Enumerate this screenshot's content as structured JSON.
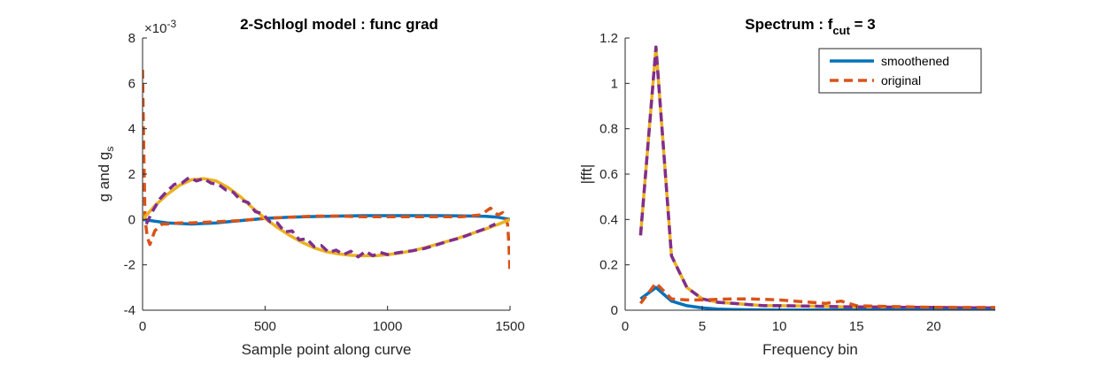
{
  "colors": {
    "smooth": "#0072BD",
    "orig": "#D95319",
    "yellow": "#EDB120",
    "purple": "#7E2F8E",
    "axis": "#262626"
  },
  "chart_data": [
    {
      "type": "line",
      "title": "2-Schlogl model : func grad",
      "xlabel": "Sample point along curve",
      "ylabel": {
        "main": "g and g",
        "sub": "s"
      },
      "y_exponent": {
        "base": "×10",
        "power": "-3"
      },
      "xlim": [
        0,
        1500
      ],
      "ylim": [
        -4,
        8
      ],
      "xticks": [
        0,
        500,
        1000,
        1500
      ],
      "yticks": [
        -4,
        -2,
        0,
        2,
        4,
        6,
        8
      ],
      "series": [
        {
          "style": "smooth-solid",
          "x": [
            0,
            100,
            200,
            300,
            400,
            500,
            600,
            700,
            800,
            900,
            1000,
            1100,
            1200,
            1300,
            1400,
            1450,
            1500
          ],
          "y": [
            0.0,
            -0.15,
            -0.2,
            -0.15,
            -0.05,
            0.05,
            0.1,
            0.13,
            0.15,
            0.17,
            0.17,
            0.17,
            0.17,
            0.16,
            0.14,
            0.1,
            0.0
          ]
        },
        {
          "style": "orig-dashed",
          "x": [
            0,
            5,
            10,
            20,
            30,
            50,
            80,
            100,
            150,
            200,
            300,
            400,
            500,
            600,
            700,
            800,
            900,
            1000,
            1100,
            1200,
            1300,
            1380,
            1420,
            1450,
            1470,
            1490,
            1495,
            1500
          ],
          "y": [
            6.6,
            3.0,
            0.0,
            -0.8,
            -1.1,
            -0.5,
            -0.2,
            -0.2,
            -0.15,
            -0.15,
            -0.1,
            -0.05,
            0.05,
            0.1,
            0.15,
            0.15,
            0.12,
            0.12,
            0.12,
            0.12,
            0.12,
            0.2,
            0.5,
            0.2,
            0.3,
            -0.2,
            -1.0,
            -2.4
          ]
        },
        {
          "style": "yellow-solid",
          "x": [
            0,
            50,
            100,
            150,
            200,
            250,
            300,
            350,
            400,
            450,
            500,
            550,
            600,
            650,
            700,
            750,
            800,
            850,
            900,
            950,
            1000,
            1050,
            1100,
            1150,
            1200,
            1250,
            1300,
            1350,
            1400,
            1450,
            1500
          ],
          "y": [
            0.0,
            0.6,
            1.1,
            1.5,
            1.75,
            1.8,
            1.7,
            1.4,
            1.0,
            0.5,
            0.05,
            -0.35,
            -0.7,
            -1.0,
            -1.25,
            -1.42,
            -1.52,
            -1.58,
            -1.6,
            -1.6,
            -1.55,
            -1.48,
            -1.38,
            -1.25,
            -1.1,
            -0.95,
            -0.78,
            -0.6,
            -0.42,
            -0.22,
            0.0
          ]
        },
        {
          "style": "purple-dashed",
          "x": [
            15,
            40,
            70,
            100,
            130,
            160,
            190,
            220,
            250,
            280,
            310,
            340,
            370,
            400,
            430,
            460,
            490,
            520,
            550,
            580,
            610,
            640,
            670,
            700,
            730,
            760,
            790,
            820,
            850,
            880,
            910,
            940,
            970,
            1000,
            1050,
            1100,
            1150,
            1200,
            1250,
            1300,
            1350,
            1400,
            1440
          ],
          "y": [
            -0.2,
            0.35,
            0.9,
            1.25,
            1.55,
            1.6,
            1.85,
            1.7,
            1.8,
            1.6,
            1.55,
            1.3,
            1.2,
            0.85,
            0.75,
            0.35,
            0.25,
            -0.1,
            -0.15,
            -0.55,
            -0.5,
            -0.9,
            -0.85,
            -1.2,
            -1.15,
            -1.45,
            -1.35,
            -1.55,
            -1.4,
            -1.65,
            -1.4,
            -1.6,
            -1.45,
            -1.55,
            -1.45,
            -1.38,
            -1.28,
            -1.12,
            -0.95,
            -0.8,
            -0.6,
            -0.4,
            -0.2
          ]
        }
      ]
    },
    {
      "type": "line",
      "title": {
        "main": "Spectrum : f",
        "sub": "cut",
        "suffix": " = 3"
      },
      "xlabel": "Frequency bin",
      "ylabel": "|fft|",
      "xlim": [
        0,
        24
      ],
      "ylim": [
        0,
        1.2
      ],
      "xticks": [
        0,
        5,
        10,
        15,
        20
      ],
      "yticks": [
        0,
        0.2,
        0.4,
        0.6,
        0.8,
        1,
        1.2
      ],
      "legend": {
        "placement": "top-right",
        "entries": [
          "smoothened",
          "original"
        ]
      },
      "series": [
        {
          "style": "yellow-solid",
          "x": [
            1,
            2,
            3,
            4,
            5,
            6,
            7,
            8,
            9,
            10,
            12,
            14,
            16,
            18,
            20,
            22,
            24
          ],
          "y": [
            0.33,
            1.16,
            0.24,
            0.1,
            0.05,
            0.035,
            0.03,
            0.025,
            0.02,
            0.02,
            0.018,
            0.015,
            0.014,
            0.013,
            0.012,
            0.011,
            0.01
          ]
        },
        {
          "style": "purple-dashed",
          "x": [
            1,
            2,
            3,
            4,
            5,
            6,
            7,
            8,
            9,
            10,
            12,
            14,
            16,
            18,
            20,
            22,
            24
          ],
          "y": [
            0.33,
            1.16,
            0.24,
            0.1,
            0.05,
            0.035,
            0.03,
            0.025,
            0.02,
            0.02,
            0.018,
            0.015,
            0.014,
            0.013,
            0.012,
            0.011,
            0.01
          ]
        },
        {
          "name": "smoothened",
          "style": "smooth-solid",
          "x": [
            1,
            2,
            3,
            4,
            5,
            6,
            7,
            8,
            10,
            12,
            14,
            16,
            18,
            20,
            22,
            24
          ],
          "y": [
            0.05,
            0.1,
            0.04,
            0.02,
            0.01,
            0.005,
            0.003,
            0.002,
            0.001,
            0.001,
            0.001,
            0.001,
            0.001,
            0.001,
            0.001,
            0.001
          ]
        },
        {
          "name": "original",
          "style": "orig-dashed",
          "x": [
            1,
            2,
            3,
            4,
            5,
            6,
            7,
            8,
            9,
            10,
            11,
            12,
            13,
            14,
            15,
            16,
            18,
            20,
            22,
            24
          ],
          "y": [
            0.03,
            0.12,
            0.05,
            0.045,
            0.045,
            0.048,
            0.05,
            0.05,
            0.048,
            0.045,
            0.04,
            0.035,
            0.03,
            0.04,
            0.02,
            0.018,
            0.015,
            0.013,
            0.012,
            0.012
          ]
        }
      ]
    }
  ]
}
